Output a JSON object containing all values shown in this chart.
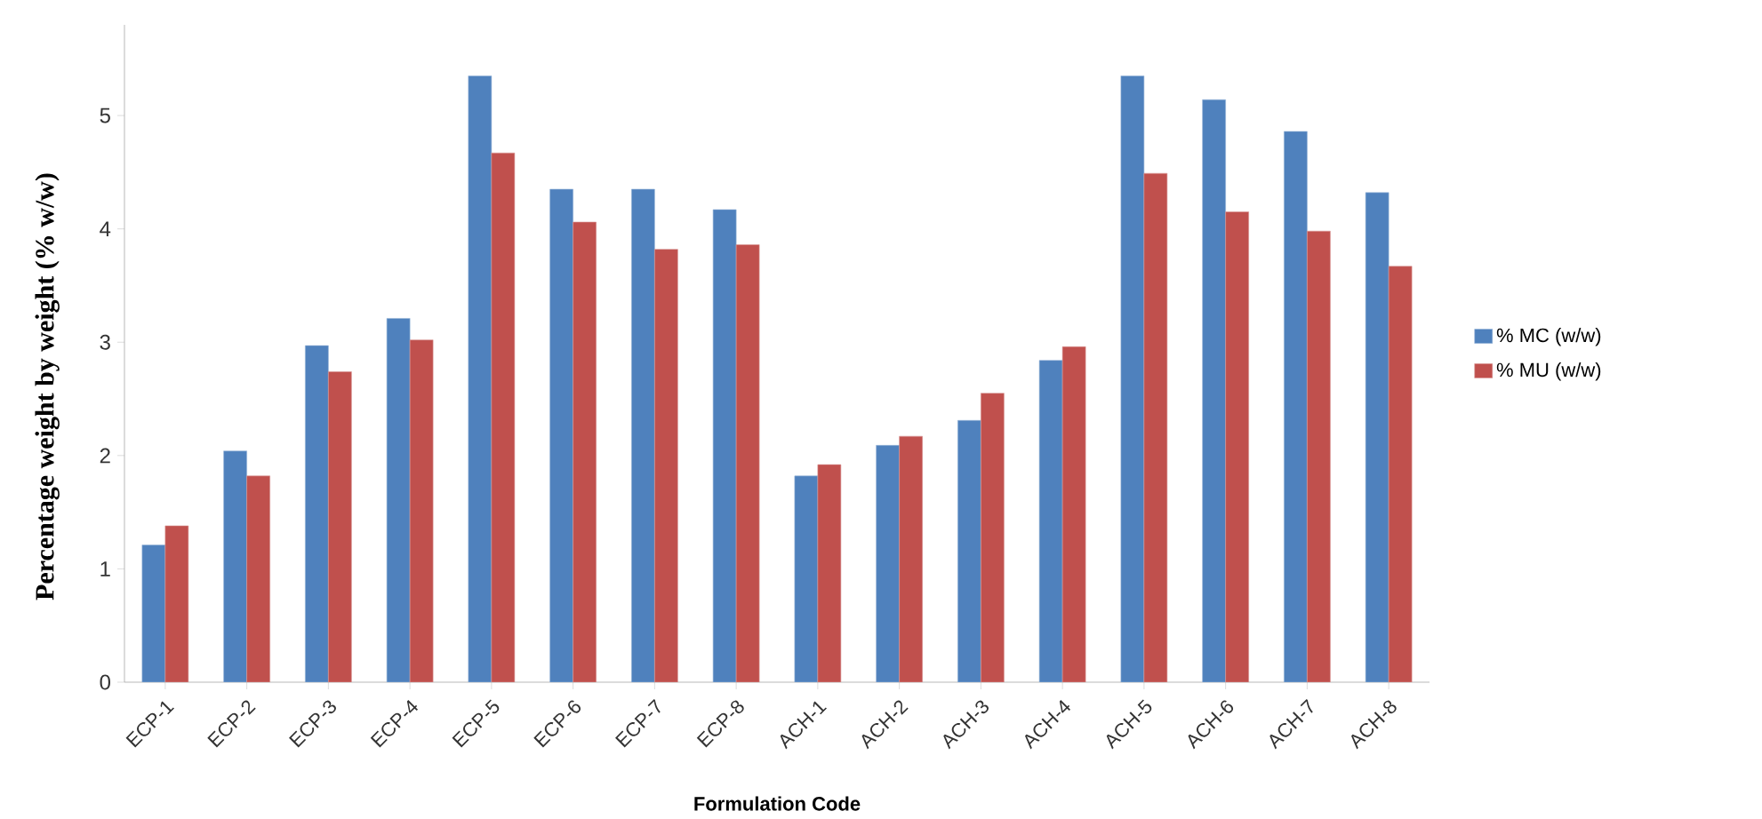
{
  "chart_data": {
    "type": "bar",
    "xlabel": "Formulation Code",
    "ylabel": "Percentage weight by weight (% w/w)",
    "categories": [
      "ECP-1",
      "ECP-2",
      "ECP-3",
      "ECP-4",
      "ECP-5",
      "ECP-6",
      "ECP-7",
      "ECP-8",
      "ACH-1",
      "ACH-2",
      "ACH-3",
      "ACH-4",
      "ACH-5",
      "ACH-6",
      "ACH-7",
      "ACH-8"
    ],
    "series": [
      {
        "name": "% MC (w/w)",
        "color": "#4f81bd",
        "values": [
          1.21,
          2.04,
          2.97,
          3.21,
          5.35,
          4.35,
          4.35,
          4.17,
          1.82,
          2.09,
          2.31,
          2.84,
          5.35,
          5.14,
          4.86,
          4.32
        ]
      },
      {
        "name": "% MU (w/w)",
        "color": "#c0504d",
        "values": [
          1.38,
          1.82,
          2.74,
          3.02,
          4.67,
          4.06,
          3.82,
          3.86,
          1.92,
          2.17,
          2.55,
          2.96,
          4.49,
          4.15,
          3.98,
          3.67
        ]
      }
    ],
    "ylim": [
      0,
      5.8
    ],
    "yticks": [
      0,
      1,
      2,
      3,
      4,
      5
    ],
    "grid": false,
    "legend": "right"
  }
}
